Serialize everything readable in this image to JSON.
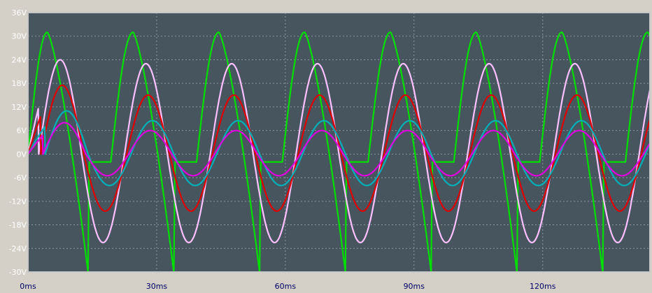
{
  "colors": {
    "plot_background": "#47555f",
    "grid": "#8c969e",
    "frame": "#c8c8c8",
    "window_background": "#d4d0c8",
    "y_tick_text": "#ffffff",
    "x_tick_text": "#000066"
  },
  "chart_data": {
    "type": "line",
    "title": "",
    "xlabel": "",
    "ylabel": "",
    "xlim_ms": [
      0,
      145
    ],
    "ylim_V": [
      -30,
      36
    ],
    "grid": true,
    "grid_style": "dotted",
    "x_ticks": [
      {
        "value": 0,
        "label": "0ms"
      },
      {
        "value": 30,
        "label": "30ms"
      },
      {
        "value": 60,
        "label": "60ms"
      },
      {
        "value": 90,
        "label": "90ms"
      },
      {
        "value": 120,
        "label": "120ms"
      }
    ],
    "y_ticks": [
      {
        "value": 36,
        "label": "36V"
      },
      {
        "value": 30,
        "label": "30V"
      },
      {
        "value": 24,
        "label": "24V"
      },
      {
        "value": 18,
        "label": "18V"
      },
      {
        "value": 12,
        "label": "12V"
      },
      {
        "value": 6,
        "label": "6V"
      },
      {
        "value": 0,
        "label": "0V"
      },
      {
        "value": -6,
        "label": "-6V"
      },
      {
        "value": -12,
        "label": "-12V"
      },
      {
        "value": -18,
        "label": "-18V"
      },
      {
        "value": -24,
        "label": "-24V"
      },
      {
        "value": -30,
        "label": "-30V"
      }
    ],
    "period_ms": 20,
    "series": [
      {
        "color": "#00e000",
        "waveform": "clipped",
        "peak_first_V": 31,
        "peak_V": 31,
        "floor_V": -2,
        "spike_min_V": -30,
        "peak_time_in_period_ms": 4.5,
        "drop_end_in_period_ms": 14,
        "rise_start_in_period_ms": 19.3
      },
      {
        "color": "#ffc0ff",
        "waveform": "sine",
        "amplitude_first_V": 24,
        "amplitude_V": 23,
        "min_V": -22.5,
        "phase_delay_ms": 2.5
      },
      {
        "color": "#e00000",
        "waveform": "sine",
        "amplitude_first_V": 17.5,
        "amplitude_V": 15,
        "min_V": -14.5,
        "phase_delay_ms": 3
      },
      {
        "color": "#00b0b8",
        "waveform": "sine",
        "amplitude_first_V": 11,
        "amplitude_V": 8.5,
        "min_V": -8,
        "phase_delay_ms": 4
      },
      {
        "color": "#e000e0",
        "waveform": "sine",
        "amplitude_first_V": 8,
        "amplitude_V": 6,
        "min_V": -5.5,
        "phase_delay_ms": 3.5
      }
    ]
  }
}
